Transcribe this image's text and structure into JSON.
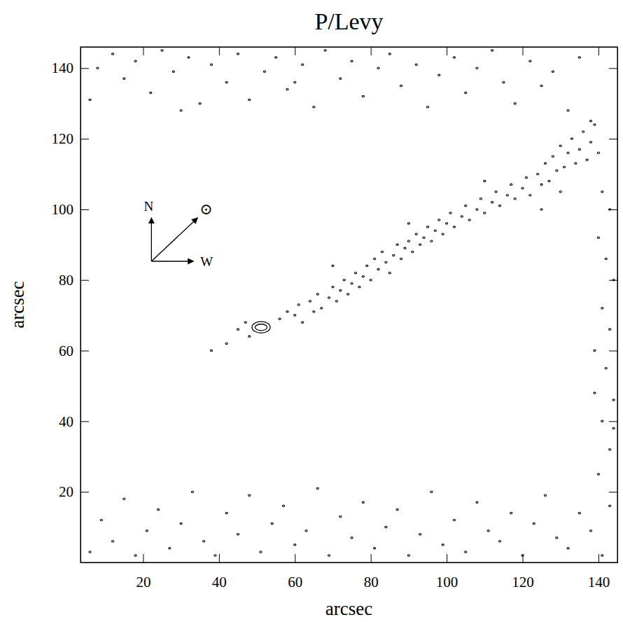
{
  "chart_data": {
    "type": "contour",
    "title": "P/Levy",
    "x_label": "arcsec",
    "y_label": "arcsec",
    "xlim": [
      3.5,
      145
    ],
    "ylim": [
      0,
      146
    ],
    "xticks": [
      20,
      40,
      60,
      80,
      100,
      120,
      140
    ],
    "yticks": [
      20,
      40,
      60,
      80,
      100,
      120,
      140
    ],
    "color": "#000000",
    "contours": [
      {
        "x": 51.1,
        "y": 66.6,
        "rx": 2.4,
        "ry": 1.6
      },
      {
        "x": 51.1,
        "y": 66.6,
        "rx": 1.6,
        "ry": 0.9
      }
    ],
    "compass": {
      "x": 22.2,
      "y": 85.3,
      "north": "N",
      "west": "W",
      "sun": "⊙"
    },
    "series": [
      {
        "marker": "dot",
        "x": [
          45,
          47,
          48,
          56,
          58,
          60,
          61,
          62,
          64,
          65,
          66,
          67,
          69,
          70,
          71,
          72,
          73,
          74,
          75,
          76,
          77,
          78,
          79,
          80,
          81,
          82,
          83,
          84,
          85,
          86,
          87,
          88,
          89,
          90,
          91,
          92,
          93,
          94,
          95,
          96,
          97,
          98,
          99,
          100,
          101,
          102,
          104,
          105,
          106,
          108,
          109,
          110,
          112,
          113,
          114,
          116,
          117,
          118,
          120,
          121,
          122,
          124,
          125,
          126,
          127,
          128,
          129,
          130,
          131,
          132,
          133,
          134,
          135,
          136,
          137,
          138,
          139,
          140,
          42,
          38,
          70,
          90,
          110,
          125,
          130,
          8,
          12,
          15,
          18,
          22,
          25,
          28,
          32,
          35,
          38,
          42,
          45,
          48,
          52,
          55,
          58,
          62,
          65,
          68,
          72,
          75,
          78,
          82,
          85,
          88,
          92,
          95,
          98,
          102,
          105,
          108,
          112,
          115,
          118,
          122,
          125,
          128,
          132,
          135,
          138,
          6,
          30,
          60,
          6,
          9,
          12,
          15,
          18,
          21,
          24,
          27,
          30,
          33,
          36,
          39,
          42,
          45,
          48,
          51,
          54,
          57,
          60,
          63,
          66,
          69,
          72,
          75,
          78,
          81,
          84,
          87,
          90,
          93,
          96,
          99,
          102,
          105,
          108,
          111,
          114,
          117,
          120,
          123,
          126,
          129,
          132,
          135,
          138,
          141,
          143,
          140,
          143,
          141,
          144,
          142,
          139,
          143,
          141,
          144,
          142,
          140,
          143,
          141,
          144,
          139
        ],
        "values": [
          66,
          68,
          64,
          69,
          71,
          70,
          73,
          68,
          74,
          71,
          76,
          72,
          75,
          78,
          74,
          77,
          80,
          76,
          79,
          82,
          78,
          81,
          84,
          80,
          86,
          83,
          88,
          85,
          82,
          87,
          90,
          86,
          89,
          91,
          88,
          93,
          90,
          92,
          95,
          91,
          94,
          97,
          93,
          96,
          99,
          95,
          98,
          101,
          97,
          100,
          103,
          99,
          102,
          105,
          101,
          104,
          107,
          103,
          106,
          109,
          104,
          110,
          107,
          113,
          108,
          115,
          111,
          118,
          112,
          116,
          120,
          113,
          117,
          122,
          114,
          119,
          124,
          116,
          62,
          60,
          84,
          96,
          108,
          100,
          105,
          140,
          144,
          137,
          142,
          133,
          145,
          139,
          143,
          130,
          141,
          136,
          144,
          131,
          139,
          143,
          134,
          141,
          129,
          145,
          137,
          142,
          132,
          140,
          144,
          135,
          141,
          129,
          138,
          143,
          133,
          140,
          145,
          136,
          130,
          142,
          135,
          139,
          128,
          143,
          125,
          131,
          128,
          136,
          3,
          12,
          6,
          18,
          2,
          9,
          15,
          4,
          11,
          20,
          6,
          2,
          14,
          8,
          19,
          3,
          11,
          16,
          5,
          9,
          21,
          2,
          13,
          7,
          17,
          4,
          10,
          15,
          2,
          8,
          20,
          5,
          12,
          3,
          17,
          9,
          6,
          14,
          2,
          11,
          19,
          7,
          4,
          14,
          9,
          2,
          16,
          25,
          32,
          40,
          46,
          55,
          60,
          66,
          72,
          80,
          86,
          92,
          100,
          105,
          38,
          48
        ]
      }
    ]
  }
}
